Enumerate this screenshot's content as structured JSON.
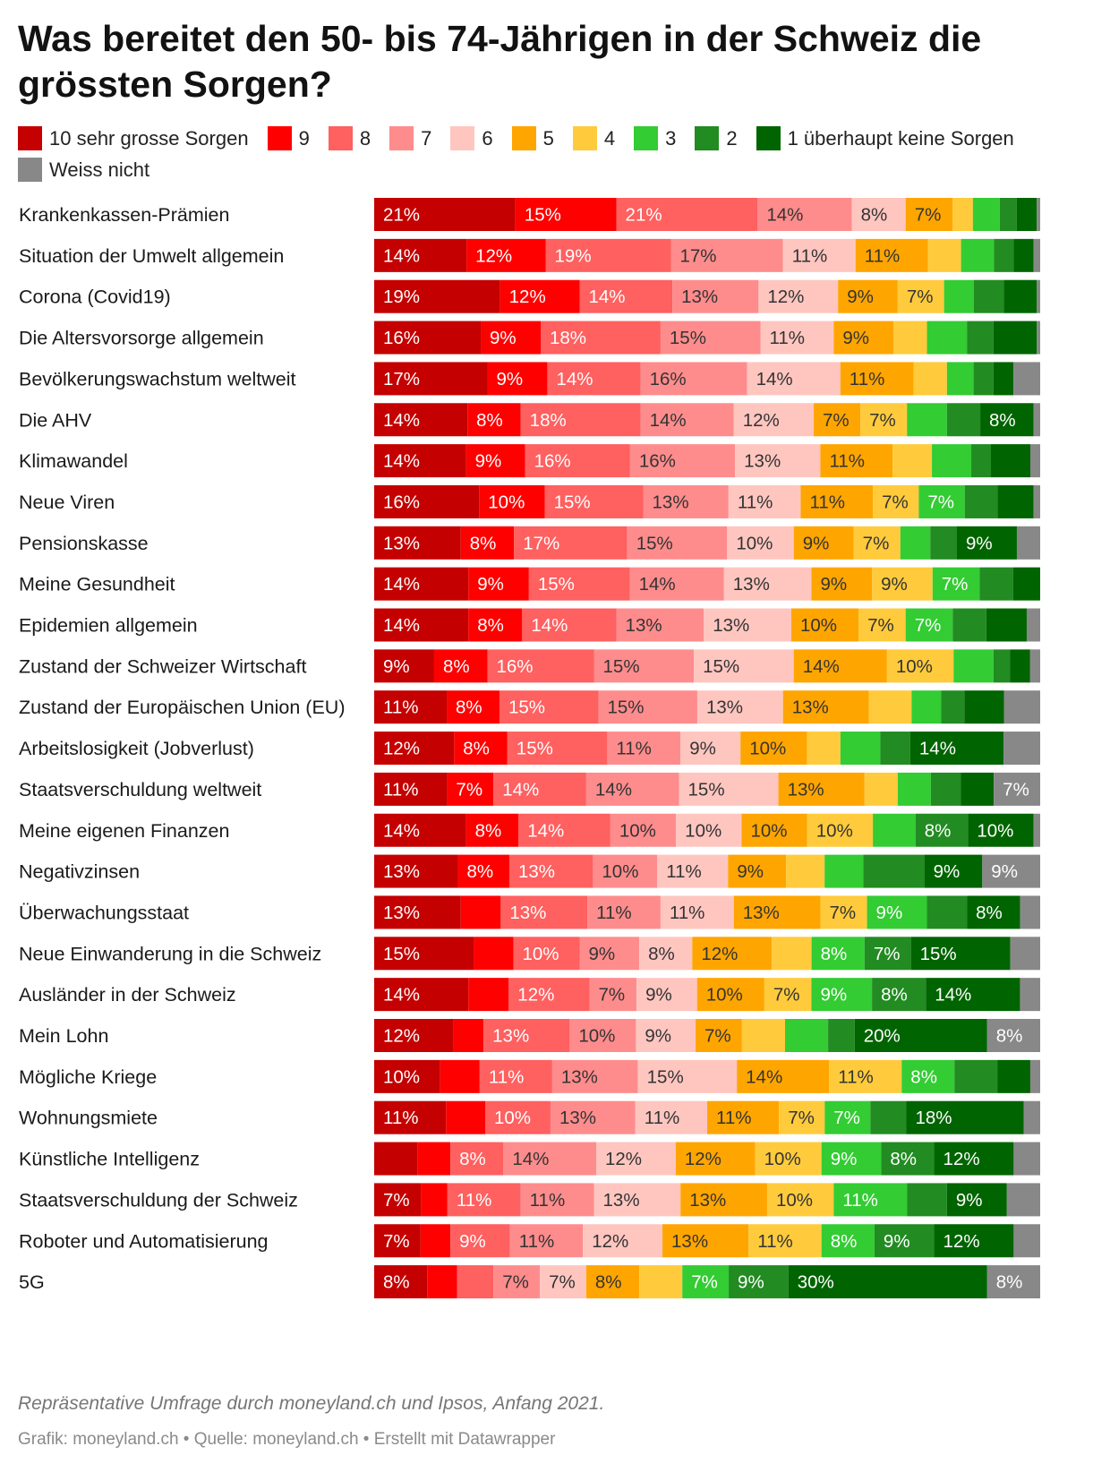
{
  "title": "Was bereitet den 50- bis 74-Jährigen in der Schweiz die grössten Sorgen?",
  "footer": {
    "note": "Repräsentative Umfrage durch moneyland.ch und Ipsos, Anfang 2021.",
    "credit": "Grafik: moneyland.ch • Quelle: moneyland.ch • Erstellt mit Datawrapper"
  },
  "legend": [
    {
      "label": "10 sehr grosse Sorgen",
      "color": "#c40000"
    },
    {
      "label": "9",
      "color": "#ff0000"
    },
    {
      "label": "8",
      "color": "#ff6060"
    },
    {
      "label": "7",
      "color": "#ff8c8c"
    },
    {
      "label": "6",
      "color": "#ffc6c0"
    },
    {
      "label": "5",
      "color": "#ffa500"
    },
    {
      "label": "4",
      "color": "#ffcb3c"
    },
    {
      "label": "3",
      "color": "#33cc33"
    },
    {
      "label": "2",
      "color": "#228b22"
    },
    {
      "label": "1 überhaupt keine Sorgen",
      "color": "#006400"
    },
    {
      "label": "Weiss nicht",
      "color": "#888888"
    }
  ],
  "chart_data": {
    "type": "bar",
    "orientation": "horizontal",
    "stacked": "100%",
    "unit": "%",
    "series": [
      "10 sehr grosse Sorgen",
      "9",
      "8",
      "7",
      "6",
      "5",
      "4",
      "3",
      "2",
      "1 überhaupt keine Sorgen",
      "Weiss nicht"
    ],
    "rows": [
      {
        "label": "Krankenkassen-Prämien",
        "values": [
          21,
          15,
          21,
          14,
          8,
          7,
          3,
          4,
          2.5,
          3,
          0.5
        ]
      },
      {
        "label": "Situation der Umwelt allgemein",
        "values": [
          14,
          12,
          19,
          17,
          11,
          11,
          5,
          5,
          3,
          3,
          1
        ]
      },
      {
        "label": "Corona (Covid19)",
        "values": [
          19,
          12,
          14,
          13,
          12,
          9,
          7,
          4.5,
          4.5,
          5,
          0.5
        ]
      },
      {
        "label": "Die Altersvorsorge allgemein",
        "values": [
          16,
          9,
          18,
          15,
          11,
          9,
          5,
          6,
          4,
          6.5,
          0.5
        ]
      },
      {
        "label": "Bevölkerungswachstum weltweit",
        "values": [
          17,
          9,
          14,
          16,
          14,
          11,
          5,
          4,
          3,
          3,
          4
        ]
      },
      {
        "label": "Die AHV",
        "values": [
          14,
          8,
          18,
          14,
          12,
          7,
          7,
          6,
          5,
          8,
          1
        ]
      },
      {
        "label": "Klimawandel",
        "values": [
          14,
          9,
          16,
          16,
          13,
          11,
          6,
          6,
          3,
          6,
          1.5
        ]
      },
      {
        "label": "Neue Viren",
        "values": [
          16,
          10,
          15,
          13,
          11,
          11,
          7,
          7,
          5,
          5.5,
          1
        ]
      },
      {
        "label": "Pensionskasse",
        "values": [
          13,
          8,
          17,
          15,
          10,
          9,
          7,
          4.5,
          4,
          9,
          3.5
        ]
      },
      {
        "label": "Meine Gesundheit",
        "values": [
          14,
          9,
          15,
          14,
          13,
          9,
          9,
          7,
          5,
          4,
          0
        ]
      },
      {
        "label": "Epidemien allgemein",
        "values": [
          14,
          8,
          14,
          13,
          13,
          10,
          7,
          7,
          5,
          6,
          2
        ]
      },
      {
        "label": "Zustand der Schweizer Wirtschaft",
        "values": [
          9,
          8,
          16,
          15,
          15,
          14,
          10,
          6,
          2.5,
          3,
          1.5
        ]
      },
      {
        "label": "Zustand der Europäischen Union (EU)",
        "values": [
          11,
          8,
          15,
          15,
          13,
          13,
          6.5,
          4.5,
          3.5,
          6,
          5.5
        ]
      },
      {
        "label": "Arbeitslosigkeit (Jobverlust)",
        "values": [
          12,
          8,
          15,
          11,
          9,
          10,
          5,
          6,
          4.5,
          14,
          5.5
        ]
      },
      {
        "label": "Staatsverschuldung weltweit",
        "values": [
          11,
          7,
          14,
          14,
          15,
          13,
          5,
          5,
          4.5,
          5,
          7
        ]
      },
      {
        "label": "Meine eigenen Finanzen",
        "values": [
          14,
          8,
          14,
          10,
          10,
          10,
          10,
          6.5,
          8,
          10,
          1
        ]
      },
      {
        "label": "Negativzinsen",
        "values": [
          13,
          8,
          13,
          10,
          11,
          9,
          6,
          6,
          9.5,
          9,
          9
        ]
      },
      {
        "label": "Überwachungsstaat",
        "values": [
          13,
          6,
          13,
          11,
          11,
          13,
          7,
          9,
          6,
          8,
          3
        ]
      },
      {
        "label": "Neue Einwanderung in die Schweiz",
        "values": [
          15,
          6,
          10,
          9,
          8,
          12,
          6,
          8,
          7,
          15,
          4.5
        ]
      },
      {
        "label": "Ausländer in der Schweiz",
        "values": [
          14,
          6,
          12,
          7,
          9,
          10,
          7,
          9,
          8,
          14,
          3
        ]
      },
      {
        "label": "Mein Lohn",
        "values": [
          12,
          4.5,
          13,
          10,
          9,
          7,
          6.5,
          6.5,
          4,
          20,
          8
        ]
      },
      {
        "label": "Mögliche Kriege",
        "values": [
          10,
          6,
          11,
          13,
          15,
          14,
          11,
          8,
          6.5,
          5,
          1.5
        ]
      },
      {
        "label": "Wohnungsmiete",
        "values": [
          11,
          6,
          10,
          13,
          11,
          11,
          7,
          7,
          5.5,
          18,
          2.5
        ]
      },
      {
        "label": "Künstliche Intelligenz",
        "values": [
          6.5,
          5,
          8,
          14,
          12,
          12,
          10,
          9,
          8,
          12,
          4
        ]
      },
      {
        "label": "Staatsverschuldung der Schweiz",
        "values": [
          7,
          4,
          11,
          11,
          13,
          13,
          10,
          11,
          6,
          9,
          5
        ]
      },
      {
        "label": "Roboter und Automatisierung",
        "values": [
          7,
          4.5,
          9,
          11,
          12,
          13,
          11,
          8,
          9,
          12,
          4
        ]
      },
      {
        "label": "5G",
        "values": [
          8,
          4.5,
          5.5,
          7,
          7,
          8,
          6.5,
          7,
          9,
          30,
          8
        ]
      }
    ]
  }
}
